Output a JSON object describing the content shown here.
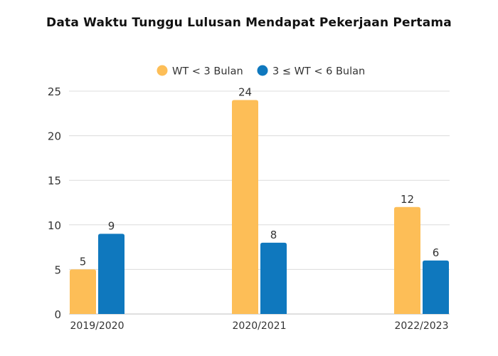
{
  "chart_data": {
    "type": "bar",
    "title": "Data Waktu Tunggu Lulusan Mendapat Pekerjaan Pertama",
    "categories": [
      "2019/2020",
      "2020/2021",
      "2022/2023"
    ],
    "series": [
      {
        "name": "WT < 3 Bulan",
        "values": [
          5,
          24,
          12
        ],
        "color": "#FDBE57"
      },
      {
        "name": "3 ≤ WT < 6 Bulan",
        "values": [
          9,
          8,
          6
        ],
        "color": "#0F78BE"
      }
    ],
    "xlabel": "",
    "ylabel": "",
    "ylim": [
      0,
      25
    ],
    "yticks": [
      0,
      5,
      10,
      15,
      20,
      25
    ],
    "grid": true,
    "legend_position": "top-center",
    "data_labels": true
  }
}
